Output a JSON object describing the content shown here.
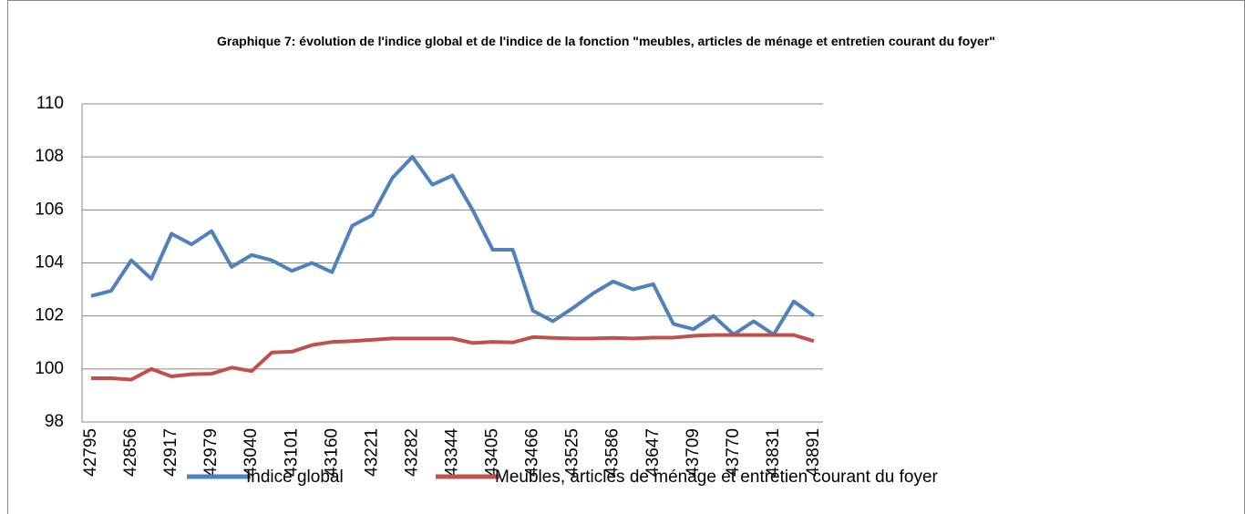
{
  "chart_data": {
    "type": "line",
    "title": "Graphique 7: évolution de l'indice global et de l'indice de la fonction \"meubles, articles de ménage et entretien courant du foyer\"",
    "categories": [
      42795,
      null,
      42856,
      null,
      42917,
      null,
      42979,
      null,
      43040,
      null,
      43101,
      null,
      43160,
      null,
      43221,
      null,
      43282,
      null,
      43344,
      null,
      43405,
      null,
      43466,
      null,
      43525,
      null,
      43586,
      null,
      43647,
      null,
      43709,
      null,
      43770,
      null,
      43831,
      null,
      43891
    ],
    "series": [
      {
        "name": "Indice global",
        "color": "#4f81bd",
        "values": [
          102.75,
          102.95,
          104.1,
          103.4,
          105.1,
          104.7,
          105.2,
          103.85,
          104.3,
          104.1,
          103.7,
          104.0,
          103.65,
          105.4,
          105.8,
          107.2,
          108.0,
          106.95,
          107.3,
          106.0,
          104.5,
          104.5,
          102.2,
          101.8,
          102.3,
          102.85,
          103.3,
          103.0,
          103.2,
          101.7,
          101.5,
          102.0,
          101.3,
          101.8,
          101.3,
          102.55,
          102.0
        ]
      },
      {
        "name": "Meubles, articles de ménage et entretien courant du foyer",
        "color": "#c0504d",
        "values": [
          99.65,
          99.65,
          99.6,
          100.0,
          99.72,
          99.8,
          99.82,
          100.05,
          99.92,
          100.62,
          100.65,
          100.9,
          101.02,
          101.05,
          101.1,
          101.15,
          101.15,
          101.15,
          101.15,
          100.98,
          101.02,
          101.0,
          101.2,
          101.17,
          101.15,
          101.15,
          101.17,
          101.15,
          101.18,
          101.18,
          101.25,
          101.28,
          101.28,
          101.28,
          101.28,
          101.28,
          101.05
        ]
      }
    ],
    "ylim": [
      98,
      110
    ],
    "yticks": [
      98,
      100,
      102,
      104,
      106,
      108,
      110
    ],
    "grid": true,
    "legend": "bottom"
  }
}
